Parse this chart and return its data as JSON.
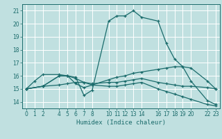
{
  "title": "",
  "xlabel": "Humidex (Indice chaleur)",
  "bg_color": "#c0e0e0",
  "grid_color": "#ffffff",
  "line_color": "#1a6b6b",
  "ylim": [
    13.5,
    21.5
  ],
  "yticks": [
    14,
    15,
    16,
    17,
    18,
    19,
    20,
    21
  ],
  "xtick_positions": [
    0,
    1,
    2,
    4,
    5,
    6,
    7,
    8,
    10,
    11,
    12,
    13,
    14,
    16,
    17,
    18,
    19,
    20,
    22,
    23
  ],
  "xtick_labels": [
    "0",
    "1",
    "2",
    "4",
    "5",
    "6",
    "7",
    "8",
    "10",
    "11",
    "12",
    "13",
    "14",
    "16",
    "17",
    "18",
    "19",
    "20",
    "22",
    "23"
  ],
  "series": [
    {
      "x": [
        0,
        1,
        2,
        4,
        5,
        6,
        7,
        8,
        10,
        11,
        12,
        13,
        14,
        16,
        17,
        18,
        19,
        20,
        22,
        23
      ],
      "y": [
        15.0,
        15.6,
        16.1,
        16.1,
        16.0,
        15.9,
        14.5,
        14.9,
        20.2,
        20.6,
        20.6,
        21.0,
        20.5,
        20.2,
        18.5,
        17.3,
        16.7,
        15.6,
        14.1,
        13.8
      ]
    },
    {
      "x": [
        0,
        2,
        4,
        5,
        6,
        7,
        8,
        10,
        11,
        12,
        13,
        14,
        16,
        17,
        18,
        19,
        20,
        22,
        23
      ],
      "y": [
        15.0,
        15.2,
        15.3,
        15.4,
        15.5,
        15.5,
        15.4,
        15.5,
        15.5,
        15.6,
        15.7,
        15.8,
        15.5,
        15.4,
        15.3,
        15.2,
        15.2,
        15.1,
        15.0
      ]
    },
    {
      "x": [
        0,
        2,
        4,
        5,
        6,
        7,
        8,
        10,
        11,
        12,
        13,
        14,
        16,
        17,
        18,
        19,
        20,
        22,
        23
      ],
      "y": [
        15.0,
        15.2,
        16.0,
        16.0,
        15.4,
        15.1,
        15.3,
        15.7,
        15.9,
        16.0,
        16.2,
        16.3,
        16.5,
        16.6,
        16.7,
        16.7,
        16.6,
        15.6,
        15.0
      ]
    },
    {
      "x": [
        0,
        2,
        4,
        5,
        6,
        7,
        8,
        10,
        11,
        12,
        13,
        14,
        16,
        17,
        18,
        19,
        20,
        22,
        23
      ],
      "y": [
        15.0,
        15.2,
        16.0,
        16.0,
        15.8,
        15.5,
        15.3,
        15.2,
        15.2,
        15.3,
        15.4,
        15.5,
        15.0,
        14.8,
        14.6,
        14.4,
        14.2,
        13.8,
        13.7
      ]
    }
  ]
}
